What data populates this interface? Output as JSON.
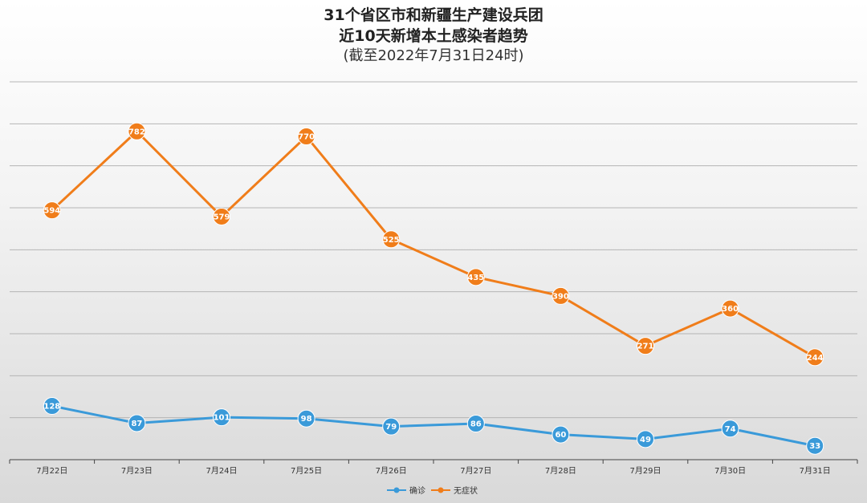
{
  "title": {
    "line1": "31个省区市和新疆生产建设兵团",
    "line2": "近10天新增本土感染者趋势",
    "line3": "(截至2022年7月31日24时)"
  },
  "colors": {
    "confirmed": "#3a9ad9",
    "asymptomatic": "#f07d1a",
    "grid": "#b5b5b5",
    "axis": "#444444"
  },
  "chart_data": {
    "type": "line",
    "title": "31个省区市和新疆生产建设兵团 近10天新增本土感染者趋势 (截至2022年7月31日24时)",
    "categories": [
      "7月22日",
      "7月23日",
      "7月24日",
      "7月25日",
      "7月26日",
      "7月27日",
      "7月28日",
      "7月29日",
      "7月30日",
      "7月31日"
    ],
    "series": [
      {
        "name": "确诊",
        "values": [
          128,
          87,
          101,
          98,
          79,
          86,
          60,
          49,
          74,
          33
        ]
      },
      {
        "name": "无症状",
        "values": [
          594,
          782,
          579,
          770,
          525,
          435,
          390,
          271,
          360,
          244
        ]
      }
    ],
    "ylim": [
      0,
      900
    ],
    "grid": true,
    "legend": "bottom"
  }
}
